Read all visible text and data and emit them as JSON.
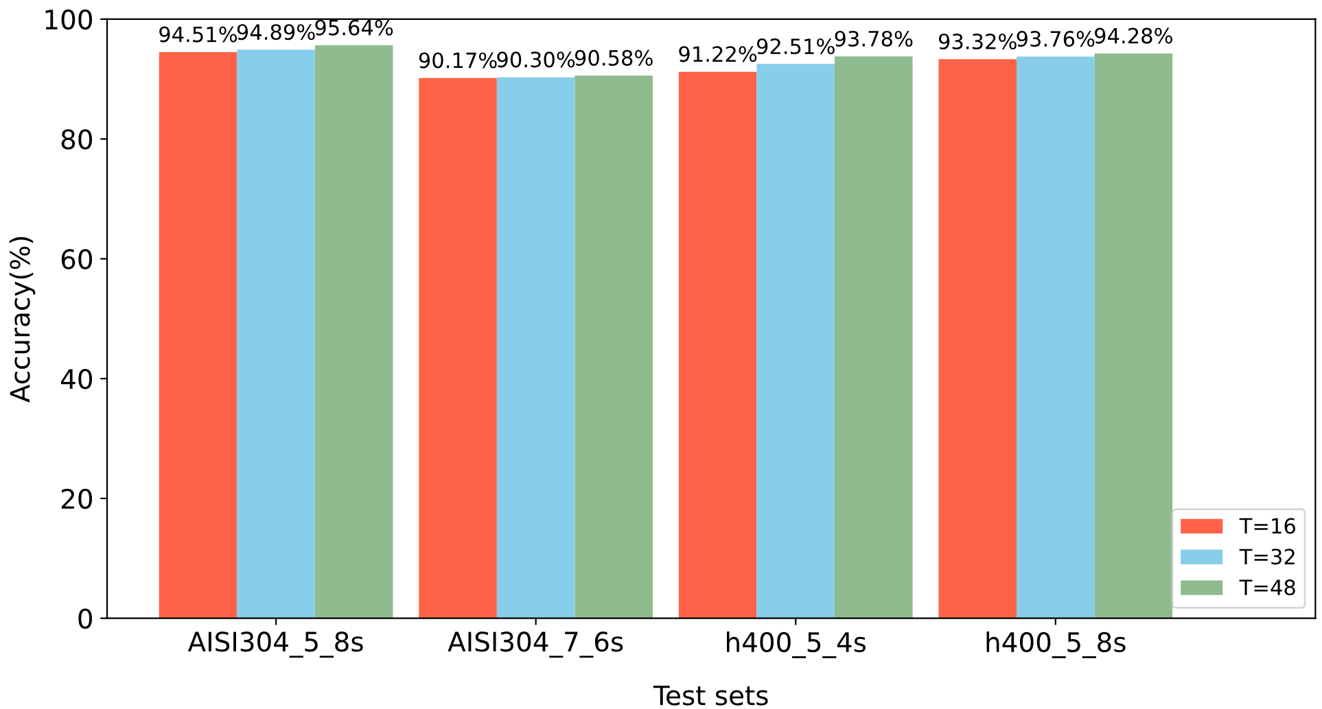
{
  "chart_data": {
    "type": "bar",
    "xlabel": "Test sets",
    "ylabel": "Accuracy(%)",
    "categories": [
      "AISI304_5_8s",
      "AISI304_7_6s",
      "h400_5_4s",
      "h400_5_8s"
    ],
    "series": [
      {
        "name": "T=16",
        "color": "#ff6347",
        "values": [
          94.51,
          90.17,
          91.22,
          93.32
        ],
        "value_labels": [
          "94.51%",
          "90.17%",
          "91.22%",
          "93.32%"
        ]
      },
      {
        "name": "T=32",
        "color": "#87ceeb",
        "values": [
          94.89,
          90.3,
          92.51,
          93.76
        ],
        "value_labels": [
          "94.89%",
          "90.30%",
          "92.51%",
          "93.76%"
        ]
      },
      {
        "name": "T=48",
        "color": "#8fbc8f",
        "values": [
          95.64,
          90.58,
          93.78,
          94.28
        ],
        "value_labels": [
          "95.64%",
          "90.58%",
          "93.78%",
          "94.28%"
        ]
      }
    ],
    "ylim": [
      0,
      100
    ],
    "yticks": [
      0,
      20,
      40,
      60,
      80,
      100
    ],
    "legend": "bottom right"
  }
}
